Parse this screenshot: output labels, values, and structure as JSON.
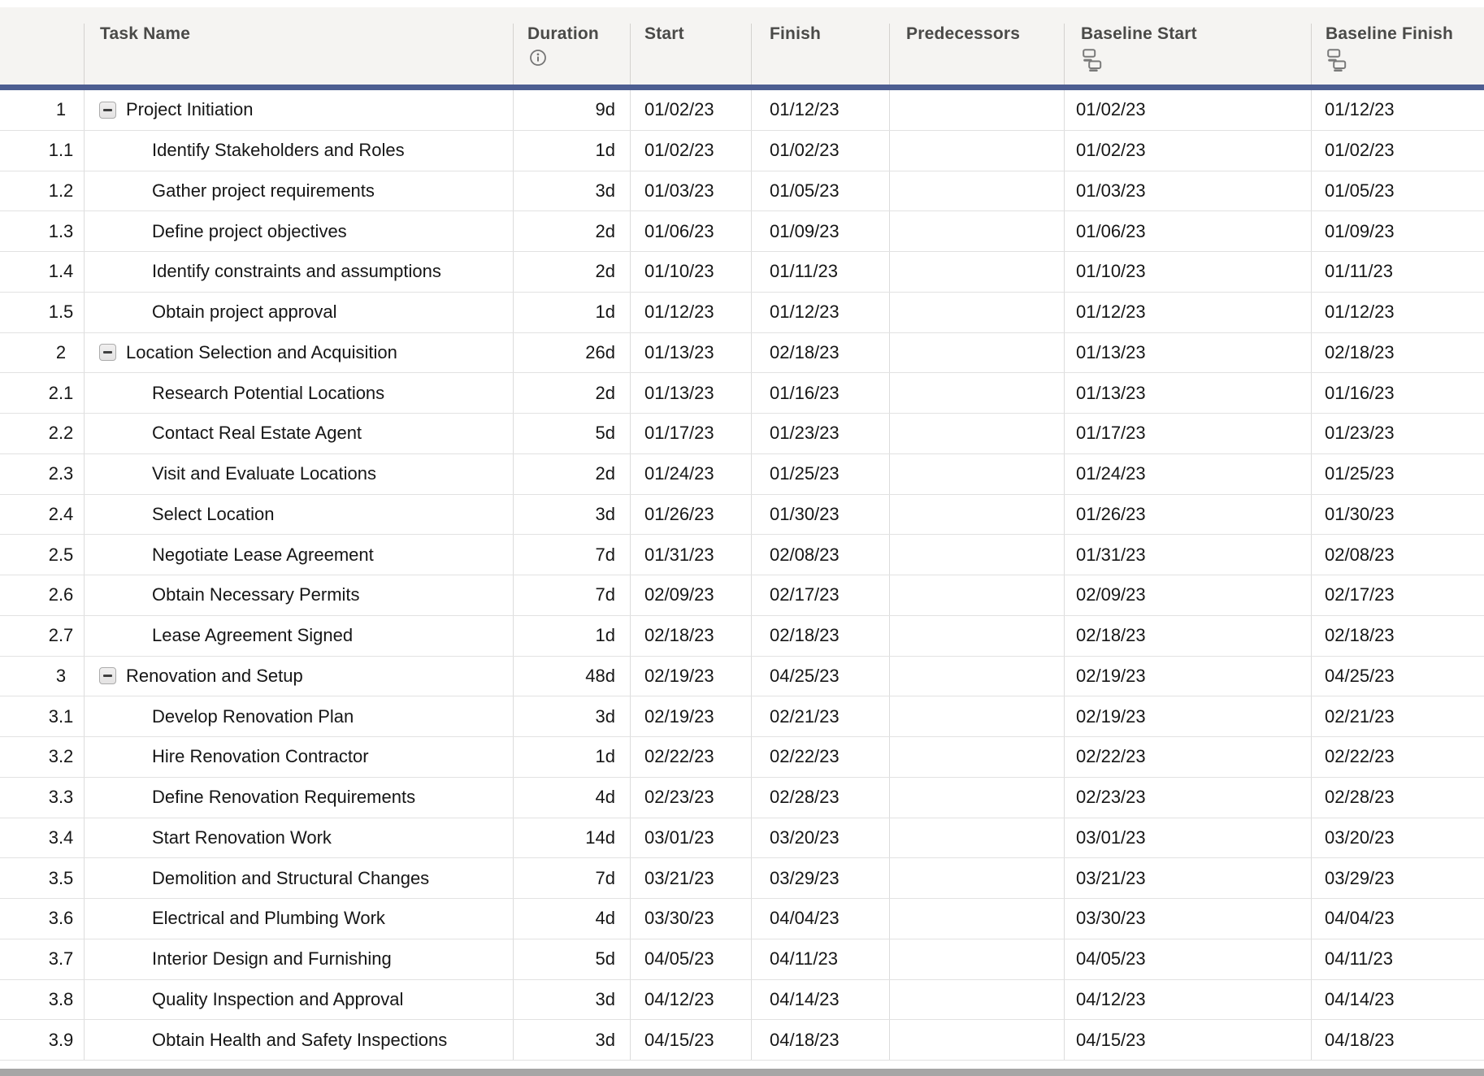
{
  "header": {
    "columns": [
      {
        "key": "num",
        "label": ""
      },
      {
        "key": "task",
        "label": "Task Name"
      },
      {
        "key": "duration",
        "label": "Duration",
        "icon": "info-icon"
      },
      {
        "key": "start",
        "label": "Start"
      },
      {
        "key": "finish",
        "label": "Finish"
      },
      {
        "key": "predecessors",
        "label": "Predecessors"
      },
      {
        "key": "baseline_start",
        "label": "Baseline Start",
        "icon": "cell-link-icon"
      },
      {
        "key": "baseline_finish",
        "label": "Baseline Finish",
        "icon": "cell-link-icon"
      }
    ]
  },
  "rows": [
    {
      "num": "1",
      "task": "Project Initiation",
      "level": 0,
      "collapsible": true,
      "duration": "9d",
      "start": "01/02/23",
      "finish": "01/12/23",
      "predecessors": "",
      "baseline_start": "01/02/23",
      "baseline_finish": "01/12/23"
    },
    {
      "num": "1.1",
      "task": "Identify Stakeholders and Roles",
      "level": 1,
      "collapsible": false,
      "duration": "1d",
      "start": "01/02/23",
      "finish": "01/02/23",
      "predecessors": "",
      "baseline_start": "01/02/23",
      "baseline_finish": "01/02/23"
    },
    {
      "num": "1.2",
      "task": "Gather project requirements",
      "level": 1,
      "collapsible": false,
      "duration": "3d",
      "start": "01/03/23",
      "finish": "01/05/23",
      "predecessors": "",
      "baseline_start": "01/03/23",
      "baseline_finish": "01/05/23"
    },
    {
      "num": "1.3",
      "task": "Define project objectives",
      "level": 1,
      "collapsible": false,
      "duration": "2d",
      "start": "01/06/23",
      "finish": "01/09/23",
      "predecessors": "",
      "baseline_start": "01/06/23",
      "baseline_finish": "01/09/23"
    },
    {
      "num": "1.4",
      "task": "Identify constraints and assumptions",
      "level": 1,
      "collapsible": false,
      "duration": "2d",
      "start": "01/10/23",
      "finish": "01/11/23",
      "predecessors": "",
      "baseline_start": "01/10/23",
      "baseline_finish": "01/11/23"
    },
    {
      "num": "1.5",
      "task": "Obtain project approval",
      "level": 1,
      "collapsible": false,
      "duration": "1d",
      "start": "01/12/23",
      "finish": "01/12/23",
      "predecessors": "",
      "baseline_start": "01/12/23",
      "baseline_finish": "01/12/23"
    },
    {
      "num": "2",
      "task": "Location Selection and Acquisition",
      "level": 0,
      "collapsible": true,
      "duration": "26d",
      "start": "01/13/23",
      "finish": "02/18/23",
      "predecessors": "",
      "baseline_start": "01/13/23",
      "baseline_finish": "02/18/23"
    },
    {
      "num": "2.1",
      "task": "Research Potential Locations",
      "level": 1,
      "collapsible": false,
      "duration": "2d",
      "start": "01/13/23",
      "finish": "01/16/23",
      "predecessors": "",
      "baseline_start": "01/13/23",
      "baseline_finish": "01/16/23"
    },
    {
      "num": "2.2",
      "task": "Contact Real Estate Agent",
      "level": 1,
      "collapsible": false,
      "duration": "5d",
      "start": "01/17/23",
      "finish": "01/23/23",
      "predecessors": "",
      "baseline_start": "01/17/23",
      "baseline_finish": "01/23/23"
    },
    {
      "num": "2.3",
      "task": "Visit and Evaluate Locations",
      "level": 1,
      "collapsible": false,
      "duration": "2d",
      "start": "01/24/23",
      "finish": "01/25/23",
      "predecessors": "",
      "baseline_start": "01/24/23",
      "baseline_finish": "01/25/23"
    },
    {
      "num": "2.4",
      "task": "Select Location",
      "level": 1,
      "collapsible": false,
      "duration": "3d",
      "start": "01/26/23",
      "finish": "01/30/23",
      "predecessors": "",
      "baseline_start": "01/26/23",
      "baseline_finish": "01/30/23"
    },
    {
      "num": "2.5",
      "task": "Negotiate Lease Agreement",
      "level": 1,
      "collapsible": false,
      "duration": "7d",
      "start": "01/31/23",
      "finish": "02/08/23",
      "predecessors": "",
      "baseline_start": "01/31/23",
      "baseline_finish": "02/08/23"
    },
    {
      "num": "2.6",
      "task": "Obtain Necessary Permits",
      "level": 1,
      "collapsible": false,
      "duration": "7d",
      "start": "02/09/23",
      "finish": "02/17/23",
      "predecessors": "",
      "baseline_start": "02/09/23",
      "baseline_finish": "02/17/23"
    },
    {
      "num": "2.7",
      "task": "Lease Agreement Signed",
      "level": 1,
      "collapsible": false,
      "duration": "1d",
      "start": "02/18/23",
      "finish": "02/18/23",
      "predecessors": "",
      "baseline_start": "02/18/23",
      "baseline_finish": "02/18/23"
    },
    {
      "num": "3",
      "task": "Renovation and Setup",
      "level": 0,
      "collapsible": true,
      "duration": "48d",
      "start": "02/19/23",
      "finish": "04/25/23",
      "predecessors": "",
      "baseline_start": "02/19/23",
      "baseline_finish": "04/25/23"
    },
    {
      "num": "3.1",
      "task": "Develop Renovation Plan",
      "level": 1,
      "collapsible": false,
      "duration": "3d",
      "start": "02/19/23",
      "finish": "02/21/23",
      "predecessors": "",
      "baseline_start": "02/19/23",
      "baseline_finish": "02/21/23"
    },
    {
      "num": "3.2",
      "task": "Hire Renovation Contractor",
      "level": 1,
      "collapsible": false,
      "duration": "1d",
      "start": "02/22/23",
      "finish": "02/22/23",
      "predecessors": "",
      "baseline_start": "02/22/23",
      "baseline_finish": "02/22/23"
    },
    {
      "num": "3.3",
      "task": "Define Renovation Requirements",
      "level": 1,
      "collapsible": false,
      "duration": "4d",
      "start": "02/23/23",
      "finish": "02/28/23",
      "predecessors": "",
      "baseline_start": "02/23/23",
      "baseline_finish": "02/28/23"
    },
    {
      "num": "3.4",
      "task": "Start Renovation Work",
      "level": 1,
      "collapsible": false,
      "duration": "14d",
      "start": "03/01/23",
      "finish": "03/20/23",
      "predecessors": "",
      "baseline_start": "03/01/23",
      "baseline_finish": "03/20/23"
    },
    {
      "num": "3.5",
      "task": "Demolition and Structural Changes",
      "level": 1,
      "collapsible": false,
      "duration": "7d",
      "start": "03/21/23",
      "finish": "03/29/23",
      "predecessors": "",
      "baseline_start": "03/21/23",
      "baseline_finish": "03/29/23"
    },
    {
      "num": "3.6",
      "task": "Electrical and Plumbing Work",
      "level": 1,
      "collapsible": false,
      "duration": "4d",
      "start": "03/30/23",
      "finish": "04/04/23",
      "predecessors": "",
      "baseline_start": "03/30/23",
      "baseline_finish": "04/04/23"
    },
    {
      "num": "3.7",
      "task": "Interior Design and Furnishing",
      "level": 1,
      "collapsible": false,
      "duration": "5d",
      "start": "04/05/23",
      "finish": "04/11/23",
      "predecessors": "",
      "baseline_start": "04/05/23",
      "baseline_finish": "04/11/23"
    },
    {
      "num": "3.8",
      "task": "Quality Inspection and Approval",
      "level": 1,
      "collapsible": false,
      "duration": "3d",
      "start": "04/12/23",
      "finish": "04/14/23",
      "predecessors": "",
      "baseline_start": "04/12/23",
      "baseline_finish": "04/14/23"
    },
    {
      "num": "3.9",
      "task": "Obtain Health and Safety Inspections",
      "level": 1,
      "collapsible": false,
      "duration": "3d",
      "start": "04/15/23",
      "finish": "04/18/23",
      "predecessors": "",
      "baseline_start": "04/15/23",
      "baseline_finish": "04/18/23"
    }
  ],
  "colors": {
    "header_background": "#f5f4f2",
    "header_accent_line": "#4d5e91",
    "header_text": "#4a4a48",
    "row_text": "#161616",
    "scrollbar": "#a6a6a6"
  }
}
